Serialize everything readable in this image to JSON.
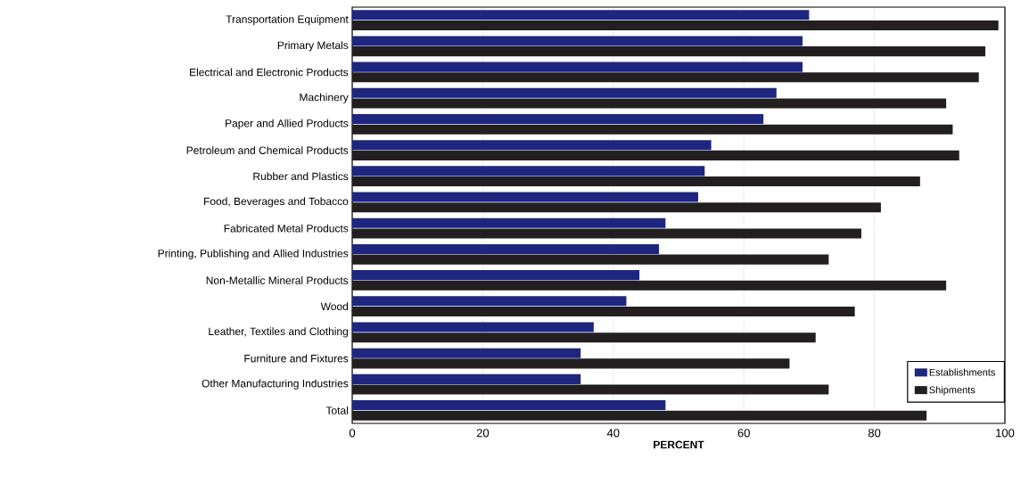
{
  "chart_data": {
    "type": "bar",
    "orientation": "horizontal",
    "xlabel": "PERCENT",
    "categories": [
      "Transportation Equipment",
      "Primary Metals",
      "Electrical and Electronic Products",
      "Machinery",
      "Paper and Allied Products",
      "Petroleum and Chemical Products",
      "Rubber and Plastics",
      "Food, Beverages and Tobacco",
      "Fabricated Metal Products",
      "Printing, Publishing and Allied Industries",
      "Non-Metallic Mineral Products",
      "Wood",
      "Leather, Textiles and Clothing",
      "Furniture and Fixtures",
      "Other Manufacturing Industries",
      "Total"
    ],
    "series": [
      {
        "name": "Establishments",
        "color": "#1e2680",
        "values": [
          70,
          69,
          69,
          65,
          63,
          55,
          54,
          53,
          48,
          47,
          44,
          42,
          37,
          35,
          35,
          48
        ]
      },
      {
        "name": "Shipments",
        "color": "#231f20",
        "values": [
          99,
          97,
          96,
          91,
          92,
          93,
          87,
          81,
          78,
          73,
          91,
          77,
          71,
          67,
          73,
          88
        ]
      }
    ],
    "xlim": [
      0,
      100
    ],
    "xticks": [
      0,
      20,
      40,
      60,
      80,
      100
    ],
    "grid": "x",
    "legend": "bottom right"
  }
}
